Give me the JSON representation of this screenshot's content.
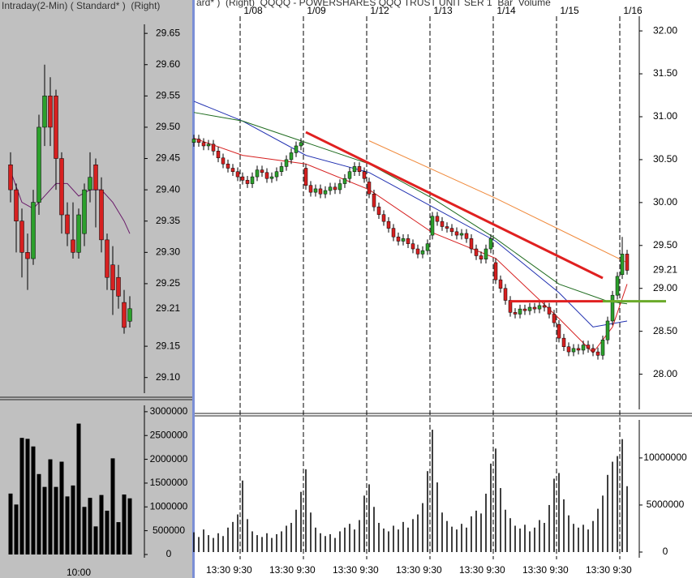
{
  "chart_data": [
    {
      "type": "candlestick",
      "title": "Intraday(2-Min) ( Standard* )  (Right)",
      "open": [
        29.44,
        29.4,
        29.35,
        29.3,
        29.29,
        29.38,
        29.5,
        29.55,
        29.55,
        29.45,
        29.36,
        29.32,
        29.3,
        29.33,
        29.4,
        29.44,
        29.4,
        29.32,
        29.28,
        29.26,
        29.22,
        29.19
      ],
      "high": [
        29.46,
        29.41,
        29.37,
        29.33,
        29.4,
        29.52,
        29.6,
        29.58,
        29.56,
        29.46,
        29.38,
        29.38,
        29.37,
        29.41,
        29.46,
        29.45,
        29.42,
        29.33,
        29.31,
        29.28,
        29.24,
        29.23
      ],
      "low": [
        29.38,
        29.3,
        29.26,
        29.24,
        29.28,
        29.36,
        29.47,
        29.47,
        29.4,
        29.33,
        29.31,
        29.29,
        29.29,
        29.31,
        29.38,
        29.34,
        29.3,
        29.24,
        29.2,
        29.21,
        29.17,
        29.18
      ],
      "close": [
        29.4,
        29.35,
        29.3,
        29.29,
        29.38,
        29.5,
        29.55,
        29.5,
        29.45,
        29.36,
        29.33,
        29.3,
        29.36,
        29.4,
        29.42,
        29.4,
        29.32,
        29.26,
        29.24,
        29.23,
        29.18,
        29.21
      ],
      "up_color": "#2ca02c",
      "down_color": "#d62020",
      "overlays": [
        {
          "color": "#6a1b6a",
          "x": [
            0,
            2,
            4,
            6,
            8,
            10,
            12,
            14,
            16,
            18,
            20,
            21
          ],
          "values": [
            29.43,
            29.38,
            29.37,
            29.39,
            29.41,
            29.41,
            29.39,
            29.4,
            29.4,
            29.38,
            29.35,
            29.33
          ]
        }
      ],
      "last_price": 29.21,
      "ylim": [
        29.075,
        29.68
      ],
      "yticks": [
        29.65,
        {
          "value": 29.6,
          "label": "29.60"
        },
        29.55,
        {
          "value": 29.5,
          "label": "29.50"
        },
        29.45,
        {
          "value": 29.4,
          "label": "29.40"
        },
        29.35,
        {
          "value": 29.3,
          "label": "29.30"
        },
        29.25,
        29.15,
        {
          "value": 29.1,
          "label": "29.10"
        }
      ]
    },
    {
      "type": "bar",
      "color": "#000000",
      "categories": [
        null,
        null,
        null,
        null,
        null,
        null,
        null,
        null,
        null,
        null,
        null,
        null,
        "10:00",
        null,
        null,
        null,
        null,
        null,
        null,
        null,
        null,
        null
      ],
      "values": [
        1280000,
        1050000,
        2450000,
        2430000,
        2270000,
        1690000,
        1420000,
        2000000,
        1420000,
        1950000,
        1220000,
        1450000,
        2750000,
        1000000,
        1190000,
        590000,
        1250000,
        920000,
        2020000,
        680000,
        1260000,
        1180000
      ],
      "ylim": [
        0,
        3100000
      ],
      "yticks": [
        0,
        500000,
        1000000,
        1500000,
        2000000,
        2500000,
        3000000
      ]
    },
    {
      "type": "candlestick",
      "title": "ard* )  (Right)  QQQQ - POWERSHARES QQQ TRUST UNIT SER 1  Bar  Volume",
      "categories": [
        null,
        null,
        null,
        null,
        null,
        null,
        null,
        null,
        null,
        null,
        "1/08",
        null,
        null,
        null,
        null,
        null,
        null,
        null,
        null,
        null,
        null,
        null,
        null,
        "1/09",
        null,
        null,
        null,
        null,
        null,
        null,
        null,
        null,
        null,
        null,
        null,
        null,
        "1/12",
        null,
        null,
        null,
        null,
        null,
        null,
        null,
        null,
        null,
        null,
        null,
        null,
        "1/13",
        null,
        null,
        null,
        null,
        null,
        null,
        null,
        null,
        null,
        null,
        null,
        null,
        "1/14",
        null,
        null,
        null,
        null,
        null,
        null,
        null,
        null,
        null,
        null,
        null,
        null,
        "1/15",
        null,
        null,
        null,
        null,
        null,
        null,
        null,
        null,
        null,
        null,
        null,
        null,
        "1/16",
        null
      ],
      "open": [
        30.7,
        30.74,
        30.7,
        30.66,
        30.68,
        30.6,
        30.52,
        30.45,
        30.4,
        30.36,
        30.3,
        30.26,
        30.22,
        30.3,
        30.38,
        30.35,
        30.28,
        30.3,
        30.36,
        30.42,
        30.5,
        30.58,
        30.66,
        30.4,
        30.2,
        30.12,
        30.16,
        30.1,
        30.14,
        30.18,
        30.15,
        30.22,
        30.28,
        30.36,
        30.42,
        30.36,
        30.24,
        30.1,
        29.95,
        29.86,
        29.78,
        29.7,
        29.6,
        29.55,
        29.58,
        29.52,
        29.46,
        29.4,
        29.44,
        29.62,
        29.84,
        29.78,
        29.72,
        29.7,
        29.66,
        29.62,
        29.64,
        29.58,
        29.46,
        29.38,
        29.34,
        29.46,
        29.3,
        29.1,
        29.0,
        28.86,
        28.72,
        28.7,
        28.76,
        28.74,
        28.78,
        28.76,
        28.8,
        28.78,
        28.7,
        28.58,
        28.42,
        28.32,
        28.26,
        28.3,
        28.28,
        28.34,
        28.3,
        28.26,
        28.22,
        28.4,
        28.62,
        28.92,
        29.16,
        29.4
      ],
      "high": [
        30.79,
        30.79,
        30.75,
        30.73,
        30.73,
        30.65,
        30.57,
        30.5,
        30.45,
        30.41,
        30.35,
        30.31,
        30.35,
        30.43,
        30.43,
        30.4,
        30.35,
        30.41,
        30.47,
        30.55,
        30.63,
        30.71,
        30.75,
        30.45,
        30.25,
        30.21,
        30.21,
        30.19,
        30.23,
        30.23,
        30.27,
        30.33,
        30.41,
        30.47,
        30.47,
        30.41,
        30.29,
        30.15,
        30.0,
        29.91,
        29.83,
        29.75,
        29.65,
        29.63,
        29.63,
        29.57,
        29.51,
        29.49,
        29.57,
        29.89,
        29.89,
        29.83,
        29.77,
        29.75,
        29.71,
        29.69,
        29.69,
        29.63,
        29.51,
        29.43,
        29.51,
        29.63,
        29.35,
        29.15,
        29.05,
        28.91,
        28.77,
        28.81,
        28.81,
        28.83,
        28.83,
        28.85,
        28.85,
        28.83,
        28.75,
        28.63,
        28.47,
        28.37,
        28.35,
        28.35,
        28.39,
        28.39,
        28.35,
        28.31,
        28.45,
        28.67,
        28.97,
        29.19,
        29.6,
        29.45
      ],
      "low": [
        30.65,
        30.65,
        30.61,
        30.61,
        30.55,
        30.47,
        30.4,
        30.35,
        30.31,
        30.25,
        30.21,
        30.17,
        30.17,
        30.25,
        30.3,
        30.23,
        30.23,
        30.25,
        30.31,
        30.37,
        30.45,
        30.53,
        30.61,
        30.15,
        30.07,
        30.07,
        30.05,
        30.05,
        30.09,
        30.1,
        30.1,
        30.17,
        30.23,
        30.31,
        30.31,
        30.23,
        30.05,
        29.9,
        29.81,
        29.73,
        29.65,
        29.55,
        29.5,
        29.5,
        29.47,
        29.41,
        29.35,
        29.35,
        29.39,
        29.57,
        29.73,
        29.67,
        29.65,
        29.61,
        29.57,
        29.57,
        29.53,
        29.41,
        29.33,
        29.29,
        29.29,
        29.41,
        29.05,
        28.95,
        28.81,
        28.67,
        28.65,
        28.65,
        28.69,
        28.69,
        28.71,
        28.71,
        28.73,
        28.65,
        28.55,
        28.37,
        28.27,
        28.21,
        28.21,
        28.23,
        28.23,
        28.25,
        28.21,
        28.17,
        28.17,
        28.35,
        28.57,
        28.87,
        29.11,
        29.16
      ],
      "close": [
        30.74,
        30.7,
        30.66,
        30.68,
        30.6,
        30.52,
        30.45,
        30.4,
        30.36,
        30.3,
        30.26,
        30.22,
        30.3,
        30.38,
        30.35,
        30.28,
        30.3,
        30.36,
        30.42,
        30.5,
        30.58,
        30.66,
        30.7,
        30.2,
        30.12,
        30.16,
        30.1,
        30.14,
        30.18,
        30.15,
        30.22,
        30.28,
        30.36,
        30.42,
        30.36,
        30.28,
        30.1,
        29.95,
        29.86,
        29.78,
        29.7,
        29.6,
        29.55,
        29.58,
        29.52,
        29.46,
        29.4,
        29.44,
        29.52,
        29.84,
        29.78,
        29.72,
        29.7,
        29.66,
        29.62,
        29.64,
        29.58,
        29.46,
        29.38,
        29.34,
        29.46,
        29.58,
        29.1,
        29.0,
        28.86,
        28.72,
        28.7,
        28.76,
        28.74,
        28.78,
        28.76,
        28.8,
        28.78,
        28.7,
        28.6,
        28.42,
        28.32,
        28.26,
        28.3,
        28.28,
        28.34,
        28.3,
        28.26,
        28.22,
        28.4,
        28.62,
        28.92,
        29.14,
        29.4,
        29.21
      ],
      "up_color": "#2ca02c",
      "down_color": "#d62020",
      "overlays": [
        {
          "color": "#1f2fb0",
          "x": [
            0,
            10,
            23,
            36,
            49,
            62,
            75,
            82,
            89
          ],
          "values": [
            31.18,
            30.95,
            30.55,
            30.35,
            29.95,
            29.55,
            28.95,
            28.55,
            28.62
          ]
        },
        {
          "color": "#1e6b1e",
          "x": [
            0,
            10,
            23,
            36,
            49,
            62,
            75,
            85,
            89
          ],
          "values": [
            31.05,
            30.95,
            30.7,
            30.45,
            30.05,
            29.58,
            29.05,
            28.85,
            28.82
          ]
        },
        {
          "color": "#d62020",
          "x": [
            0,
            10,
            23,
            36,
            49,
            62,
            75,
            82,
            86,
            89
          ],
          "values": [
            30.75,
            30.55,
            30.45,
            30.15,
            29.65,
            29.35,
            28.65,
            28.25,
            28.55,
            29.05
          ]
        },
        {
          "color": "#f08a3c",
          "x": [
            36,
            62,
            80,
            89
          ],
          "values": [
            30.72,
            30.05,
            29.55,
            29.3
          ]
        }
      ],
      "trend_lines": [
        {
          "color": "#e02020",
          "x": [
            23,
            84
          ],
          "values": [
            30.82,
            29.12
          ]
        },
        {
          "color": "#e02020",
          "x": [
            65,
            84
          ],
          "values": [
            28.85,
            28.85
          ]
        },
        {
          "color": "#6aaa2a",
          "x": [
            84,
            97
          ],
          "values": [
            28.85,
            28.85
          ]
        }
      ],
      "last_price": 29.21,
      "ylim": [
        27.59,
        32.19
      ],
      "yticks": [
        {
          "value": 32,
          "label": "32.00"
        },
        {
          "value": 31.5,
          "label": "31.50"
        },
        {
          "value": 31,
          "label": "31.00"
        },
        {
          "value": 30.5,
          "label": "30.50"
        },
        {
          "value": 30,
          "label": "30.00"
        },
        {
          "value": 29.5,
          "label": "29.50"
        },
        {
          "value": 29,
          "label": "29.00"
        },
        {
          "value": 28.5,
          "label": "28.50"
        },
        {
          "value": 28,
          "label": "28.00"
        }
      ]
    },
    {
      "type": "bar",
      "color": "#000000",
      "categories": [
        null,
        null,
        null,
        null,
        null,
        "13:30",
        null,
        null,
        null,
        null,
        "9:30",
        null,
        null,
        null,
        null,
        null,
        null,
        null,
        "13:30",
        null,
        null,
        null,
        null,
        "9:30",
        null,
        null,
        null,
        null,
        null,
        null,
        null,
        "13:30",
        null,
        null,
        null,
        null,
        "9:30",
        null,
        null,
        null,
        null,
        null,
        null,
        null,
        "13:30",
        null,
        null,
        null,
        null,
        "9:30",
        null,
        null,
        null,
        null,
        null,
        null,
        null,
        "13:30",
        null,
        null,
        null,
        null,
        "9:30",
        null,
        null,
        null,
        null,
        null,
        null,
        null,
        "13:30",
        null,
        null,
        null,
        null,
        "9:30",
        null,
        null,
        null,
        null,
        null,
        null,
        null,
        "13:30",
        null,
        null,
        null,
        null,
        "9:30",
        null
      ],
      "values": [
        2100000,
        1600000,
        2400000,
        1800000,
        1500000,
        2000000,
        1700000,
        2600000,
        3200000,
        4000000,
        7600000,
        3500000,
        2200000,
        1800000,
        1600000,
        2000000,
        1500000,
        1900000,
        2200000,
        2800000,
        3100000,
        4500000,
        6400000,
        8800000,
        4200000,
        2600000,
        2000000,
        1700000,
        1900000,
        1500000,
        2200000,
        2600000,
        3000000,
        2400000,
        3400000,
        6000000,
        7200000,
        4800000,
        3100000,
        2500000,
        2200000,
        2800000,
        2400000,
        3200000,
        2600000,
        3500000,
        4000000,
        5200000,
        8600000,
        13000000,
        7400000,
        4200000,
        3300000,
        2700000,
        2400000,
        3000000,
        2600000,
        3800000,
        4400000,
        4100000,
        6200000,
        9400000,
        11000000,
        6800000,
        4500000,
        3600000,
        2800000,
        2500000,
        2900000,
        2200000,
        2600000,
        3400000,
        3100000,
        5000000,
        7800000,
        8400000,
        5600000,
        3900000,
        3000000,
        2600000,
        2900000,
        2400000,
        3300000,
        4600000,
        6000000,
        8200000,
        9600000,
        10200000,
        12000000,
        7000000
      ],
      "ylim": [
        0,
        14300000
      ],
      "yticks": [
        0,
        5000000,
        10000000
      ]
    }
  ]
}
